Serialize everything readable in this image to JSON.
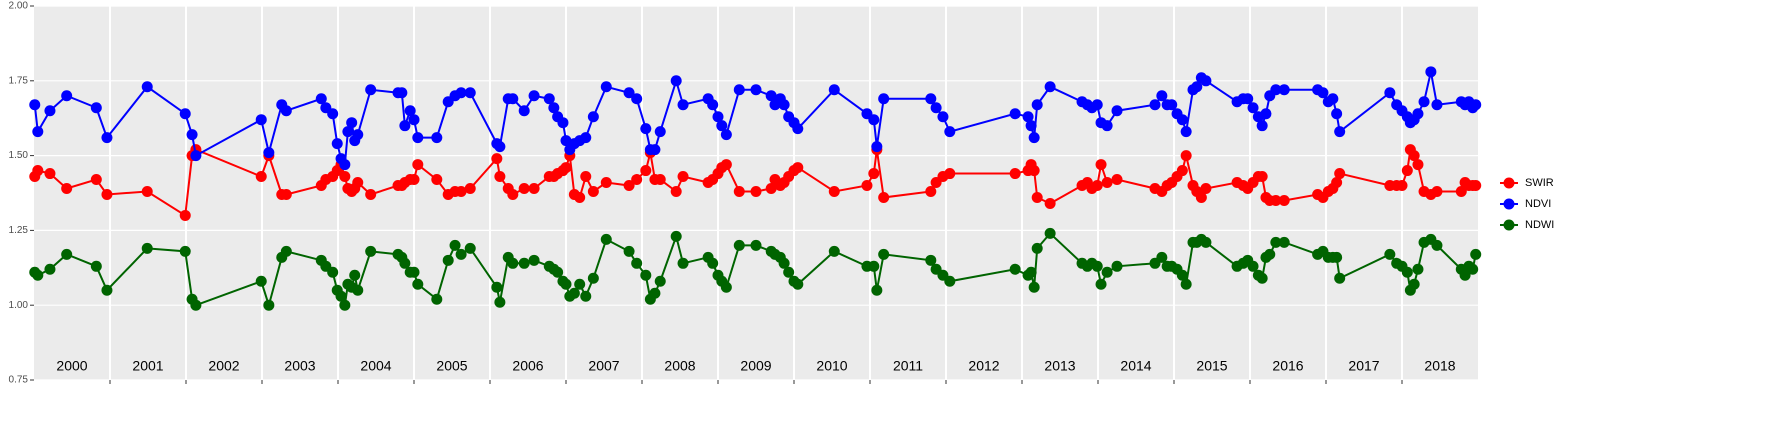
{
  "chart_data": {
    "type": "line",
    "x": [
      2000.01,
      2000.05,
      2000.21,
      2000.43,
      2000.82,
      2000.96,
      2001.49,
      2001.99,
      2002.08,
      2002.13,
      2002.99,
      2003.09,
      2003.26,
      2003.32,
      2003.78,
      2003.84,
      2003.93,
      2003.99,
      2004.04,
      2004.09,
      2004.13,
      2004.18,
      2004.22,
      2004.26,
      2004.43,
      2004.79,
      2004.84,
      2004.88,
      2004.95,
      2005.0,
      2005.05,
      2005.3,
      2005.45,
      2005.54,
      2005.62,
      2005.74,
      2006.09,
      2006.13,
      2006.24,
      2006.3,
      2006.45,
      2006.58,
      2006.78,
      2006.84,
      2006.89,
      2006.96,
      2007.0,
      2007.05,
      2007.11,
      2007.18,
      2007.26,
      2007.36,
      2007.53,
      2007.83,
      2007.93,
      2008.05,
      2008.11,
      2008.17,
      2008.24,
      2008.45,
      2008.54,
      2008.87,
      2008.93,
      2009.0,
      2009.05,
      2009.11,
      2009.28,
      2009.5,
      2009.7,
      2009.75,
      2009.82,
      2009.87,
      2009.93,
      2010.0,
      2010.05,
      2010.53,
      2010.96,
      2011.05,
      2011.09,
      2011.18,
      2011.8,
      2011.87,
      2011.96,
      2012.05,
      2012.91,
      2013.08,
      2013.12,
      2013.16,
      2013.2,
      2013.37,
      2013.79,
      2013.86,
      2013.92,
      2013.99,
      2014.04,
      2014.12,
      2014.25,
      2014.75,
      2014.84,
      2014.91,
      2014.97,
      2015.04,
      2015.11,
      2015.16,
      2015.25,
      2015.3,
      2015.36,
      2015.42,
      2015.83,
      2015.91,
      2015.97,
      2016.04,
      2016.11,
      2016.16,
      2016.21,
      2016.26,
      2016.34,
      2016.45,
      2016.89,
      2016.96,
      2017.03,
      2017.09,
      2017.14,
      2017.18,
      2017.84,
      2017.93,
      2018.0,
      2018.07,
      2018.11,
      2018.16,
      2018.21,
      2018.29,
      2018.38,
      2018.46,
      2018.78,
      2018.83,
      2018.88,
      2018.93,
      2018.97
    ],
    "series": [
      {
        "name": "SWIR",
        "color": "#ff0000",
        "values": [
          1.43,
          1.45,
          1.44,
          1.39,
          1.42,
          1.37,
          1.38,
          1.3,
          1.5,
          1.52,
          1.43,
          1.5,
          1.37,
          1.37,
          1.4,
          1.42,
          1.43,
          1.45,
          1.47,
          1.43,
          1.39,
          1.38,
          1.39,
          1.41,
          1.37,
          1.4,
          1.4,
          1.41,
          1.42,
          1.42,
          1.47,
          1.42,
          1.37,
          1.38,
          1.38,
          1.39,
          1.49,
          1.43,
          1.39,
          1.37,
          1.39,
          1.39,
          1.43,
          1.43,
          1.44,
          1.45,
          1.46,
          1.5,
          1.37,
          1.36,
          1.43,
          1.38,
          1.41,
          1.4,
          1.42,
          1.45,
          1.51,
          1.42,
          1.42,
          1.38,
          1.43,
          1.41,
          1.42,
          1.44,
          1.46,
          1.47,
          1.38,
          1.38,
          1.39,
          1.42,
          1.4,
          1.41,
          1.43,
          1.45,
          1.46,
          1.38,
          1.4,
          1.44,
          1.52,
          1.36,
          1.38,
          1.41,
          1.43,
          1.44,
          1.44,
          1.45,
          1.47,
          1.45,
          1.36,
          1.34,
          1.4,
          1.41,
          1.39,
          1.4,
          1.47,
          1.41,
          1.42,
          1.39,
          1.38,
          1.4,
          1.41,
          1.43,
          1.45,
          1.5,
          1.4,
          1.38,
          1.36,
          1.39,
          1.41,
          1.4,
          1.39,
          1.41,
          1.43,
          1.43,
          1.36,
          1.35,
          1.35,
          1.35,
          1.37,
          1.36,
          1.38,
          1.39,
          1.41,
          1.44,
          1.4,
          1.4,
          1.4,
          1.45,
          1.52,
          1.5,
          1.47,
          1.38,
          1.37,
          1.38,
          1.38,
          1.41,
          1.4,
          1.4,
          1.4
        ]
      },
      {
        "name": "NDVI",
        "color": "#0000ff",
        "values": [
          1.67,
          1.58,
          1.65,
          1.7,
          1.66,
          1.56,
          1.73,
          1.64,
          1.57,
          1.5,
          1.62,
          1.51,
          1.67,
          1.65,
          1.69,
          1.66,
          1.64,
          1.54,
          1.49,
          1.47,
          1.58,
          1.61,
          1.55,
          1.57,
          1.72,
          1.71,
          1.71,
          1.6,
          1.65,
          1.62,
          1.56,
          1.56,
          1.68,
          1.7,
          1.71,
          1.71,
          1.54,
          1.53,
          1.69,
          1.69,
          1.65,
          1.7,
          1.69,
          1.66,
          1.63,
          1.61,
          1.55,
          1.52,
          1.54,
          1.55,
          1.56,
          1.63,
          1.73,
          1.71,
          1.69,
          1.59,
          1.52,
          1.52,
          1.58,
          1.75,
          1.67,
          1.69,
          1.67,
          1.63,
          1.6,
          1.57,
          1.72,
          1.72,
          1.7,
          1.67,
          1.69,
          1.67,
          1.63,
          1.61,
          1.59,
          1.72,
          1.64,
          1.62,
          1.53,
          1.69,
          1.69,
          1.66,
          1.63,
          1.58,
          1.64,
          1.63,
          1.6,
          1.56,
          1.67,
          1.73,
          1.68,
          1.67,
          1.66,
          1.67,
          1.61,
          1.6,
          1.65,
          1.67,
          1.7,
          1.67,
          1.67,
          1.64,
          1.62,
          1.58,
          1.72,
          1.73,
          1.76,
          1.75,
          1.68,
          1.69,
          1.69,
          1.66,
          1.63,
          1.6,
          1.64,
          1.7,
          1.72,
          1.72,
          1.72,
          1.71,
          1.68,
          1.69,
          1.64,
          1.58,
          1.71,
          1.67,
          1.65,
          1.63,
          1.61,
          1.62,
          1.64,
          1.68,
          1.78,
          1.67,
          1.68,
          1.67,
          1.68,
          1.66,
          1.67
        ]
      },
      {
        "name": "NDWI",
        "color": "#006400",
        "values": [
          1.11,
          1.1,
          1.12,
          1.17,
          1.13,
          1.05,
          1.19,
          1.18,
          1.02,
          1.0,
          1.08,
          1.0,
          1.16,
          1.18,
          1.15,
          1.13,
          1.11,
          1.05,
          1.03,
          1.0,
          1.07,
          1.06,
          1.1,
          1.05,
          1.18,
          1.17,
          1.16,
          1.14,
          1.11,
          1.11,
          1.07,
          1.02,
          1.15,
          1.2,
          1.17,
          1.19,
          1.06,
          1.01,
          1.16,
          1.14,
          1.14,
          1.15,
          1.13,
          1.12,
          1.11,
          1.08,
          1.07,
          1.03,
          1.04,
          1.07,
          1.03,
          1.09,
          1.22,
          1.18,
          1.14,
          1.1,
          1.02,
          1.04,
          1.08,
          1.23,
          1.14,
          1.16,
          1.14,
          1.1,
          1.08,
          1.06,
          1.2,
          1.2,
          1.18,
          1.17,
          1.16,
          1.14,
          1.11,
          1.08,
          1.07,
          1.18,
          1.13,
          1.13,
          1.05,
          1.17,
          1.15,
          1.12,
          1.1,
          1.08,
          1.12,
          1.1,
          1.11,
          1.06,
          1.19,
          1.24,
          1.14,
          1.13,
          1.14,
          1.13,
          1.07,
          1.11,
          1.13,
          1.14,
          1.16,
          1.13,
          1.13,
          1.12,
          1.1,
          1.07,
          1.21,
          1.21,
          1.22,
          1.21,
          1.13,
          1.14,
          1.15,
          1.13,
          1.1,
          1.09,
          1.16,
          1.17,
          1.21,
          1.21,
          1.17,
          1.18,
          1.16,
          1.16,
          1.16,
          1.09,
          1.17,
          1.14,
          1.13,
          1.11,
          1.05,
          1.07,
          1.12,
          1.21,
          1.22,
          1.2,
          1.12,
          1.1,
          1.13,
          1.12,
          1.17
        ]
      }
    ],
    "xlim": [
      2000,
      2019
    ],
    "ylim": [
      0.75,
      2.0
    ],
    "yticks": [
      {
        "value": 0.75,
        "label": "0.75"
      },
      {
        "value": 1,
        "label": "1.00"
      },
      {
        "value": 1.25,
        "label": "1.25"
      },
      {
        "value": 1.5,
        "label": "1.50"
      },
      {
        "value": 1.75,
        "label": "1.75"
      },
      {
        "value": 2,
        "label": "2.00"
      }
    ],
    "xgrid": [
      2001,
      2002,
      2003,
      2004,
      2005,
      2006,
      2007,
      2008,
      2009,
      2010,
      2011,
      2012,
      2013,
      2014,
      2015,
      2016,
      2017,
      2018
    ],
    "year_labels": [
      {
        "value": 2000.5,
        "label": "2000"
      },
      {
        "value": 2001.5,
        "label": "2001"
      },
      {
        "value": 2002.5,
        "label": "2002"
      },
      {
        "value": 2003.5,
        "label": "2003"
      },
      {
        "value": 2004.5,
        "label": "2004"
      },
      {
        "value": 2005.5,
        "label": "2005"
      },
      {
        "value": 2006.5,
        "label": "2006"
      },
      {
        "value": 2007.5,
        "label": "2007"
      },
      {
        "value": 2008.5,
        "label": "2008"
      },
      {
        "value": 2009.5,
        "label": "2009"
      },
      {
        "value": 2010.5,
        "label": "2010"
      },
      {
        "value": 2011.5,
        "label": "2011"
      },
      {
        "value": 2012.5,
        "label": "2012"
      },
      {
        "value": 2013.5,
        "label": "2013"
      },
      {
        "value": 2014.5,
        "label": "2014"
      },
      {
        "value": 2015.5,
        "label": "2015"
      },
      {
        "value": 2016.5,
        "label": "2016"
      },
      {
        "value": 2017.5,
        "label": "2017"
      },
      {
        "value": 2018.5,
        "label": "2018"
      }
    ],
    "grid": true,
    "legend": "right"
  }
}
